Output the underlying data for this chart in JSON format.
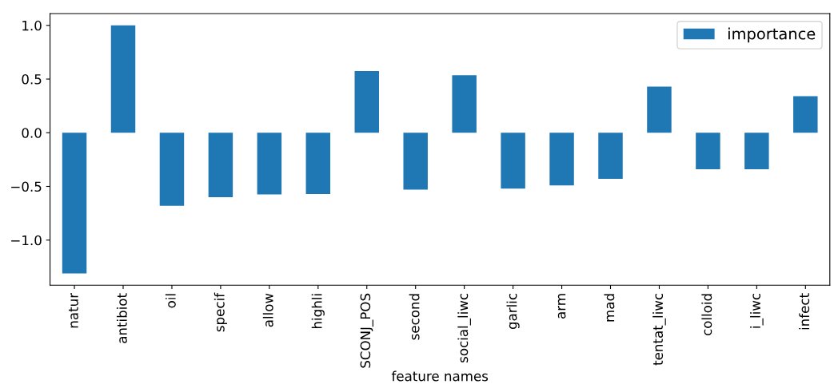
{
  "chart_data": {
    "type": "bar",
    "xlabel": "feature names",
    "categories": [
      "natur",
      "antibiot",
      "oil",
      "specif",
      "allow",
      "highli",
      "SCONJ_POS",
      "second",
      "social_liwc",
      "garlic",
      "arm",
      "mad",
      "tentat_liwc",
      "colloid",
      "i_liwc",
      "infect"
    ],
    "series": [
      {
        "name": "importance",
        "color": "#1f77b4",
        "values": [
          -1.31,
          1.0,
          -0.68,
          -0.6,
          -0.575,
          -0.57,
          0.575,
          -0.53,
          0.535,
          -0.52,
          -0.49,
          -0.43,
          0.43,
          -0.34,
          -0.34,
          0.34
        ]
      }
    ],
    "ylim": [
      -1.42,
      1.11
    ],
    "yticks": [
      {
        "value": -1.0,
        "label": "−1.0"
      },
      {
        "value": -0.5,
        "label": "−0.5"
      },
      {
        "value": 0.0,
        "label": "0.0"
      },
      {
        "value": 0.5,
        "label": "0.5"
      },
      {
        "value": 1.0,
        "label": "1.0"
      }
    ],
    "grid": false,
    "legend": "top right"
  }
}
